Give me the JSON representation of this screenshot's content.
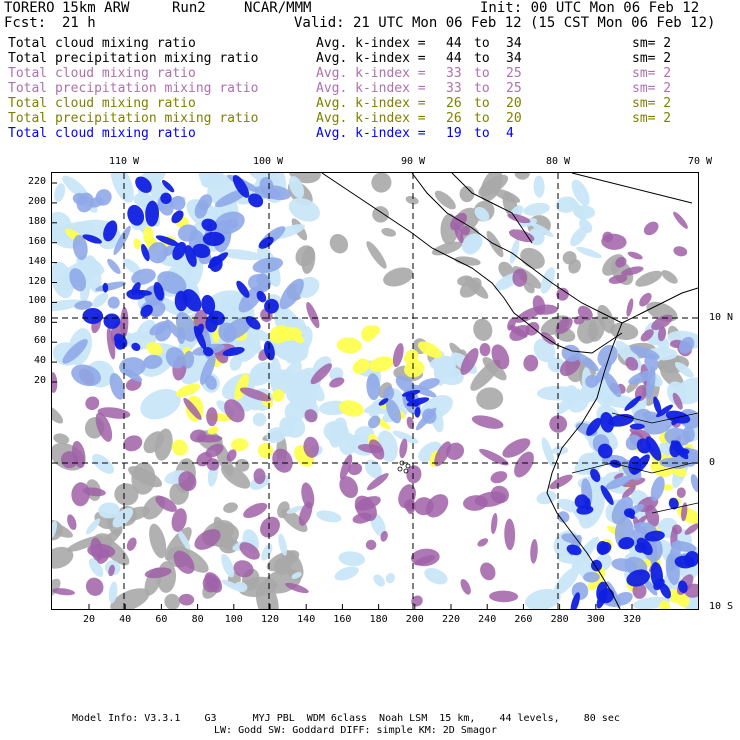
{
  "header": {
    "model": "TORERO",
    "resolution": "15km ARW",
    "run": "Run2",
    "org": "NCAR/MMM",
    "init": "Init: 00 UTC Mon 06 Feb 12",
    "fcst_label": "Fcst:",
    "fcst_value": "21 h",
    "valid": "Valid: 21 UTC Mon 06 Feb 12 (15 CST Mon 06 Feb 12)"
  },
  "legend": [
    {
      "field": "Total cloud mixing ratio",
      "avg_label": "Avg. k-index =",
      "k_from": "44",
      "to": "to",
      "k_to": "34",
      "sm": "sm= 2",
      "color": "#000000"
    },
    {
      "field": "Total precipitation mixing ratio",
      "avg_label": "Avg. k-index =",
      "k_from": "44",
      "to": "to",
      "k_to": "34",
      "sm": "sm= 2",
      "color": "#000000"
    },
    {
      "field": "Total cloud mixing ratio",
      "avg_label": "Avg. k-index =",
      "k_from": "33",
      "to": "to",
      "k_to": "25",
      "sm": "sm= 2",
      "color": "#b070b0"
    },
    {
      "field": "Total precipitation mixing ratio",
      "avg_label": "Avg. k-index =",
      "k_from": "33",
      "to": "to",
      "k_to": "25",
      "sm": "sm= 2",
      "color": "#b070b0"
    },
    {
      "field": "Total cloud mixing ratio",
      "avg_label": "Avg. k-index =",
      "k_from": "26",
      "to": "to",
      "k_to": "20",
      "sm": "sm= 2",
      "color": "#808000"
    },
    {
      "field": "Total precipitation mixing ratio",
      "avg_label": "Avg. k-index =",
      "k_from": "26",
      "to": "to",
      "k_to": "20",
      "sm": "sm= 2",
      "color": "#808000"
    },
    {
      "field": "Total cloud mixing ratio",
      "avg_label": "Avg. k-index =",
      "k_from": "19",
      "to": "to",
      "k_to": "4",
      "sm": "",
      "color": "#0000ff"
    }
  ],
  "axes": {
    "top_labels": [
      "110 W",
      "100 W",
      "90 W",
      "80 W",
      "70 W"
    ],
    "right_labels": [
      "10 N",
      "0",
      "10 S"
    ],
    "left_ticks": [
      "220",
      "200",
      "180",
      "160",
      "140",
      "120",
      "100",
      "80",
      "60",
      "40",
      "20"
    ],
    "bottom_ticks": [
      "20",
      "40",
      "60",
      "80",
      "100",
      "120",
      "140",
      "160",
      "180",
      "200",
      "220",
      "240",
      "260",
      "280",
      "300",
      "320"
    ]
  },
  "colors": {
    "cloud_gray": "#a8a8a8",
    "precip_purple": "#a060a8",
    "yellow": "#ffff50",
    "light_blue": "#c8e6f8",
    "mid_blue": "#8fa8e8",
    "deep_blue": "#1020e0",
    "coast": "#000000"
  },
  "footer": {
    "line1": "Model Info: V3.3.1    G3      MYJ PBL  WDM 6class  Noah LSM  15 km,    44 levels,    80 sec",
    "line2": "LW: Godd SW: Goddard DIFF: simple KM: 2D Smagor"
  }
}
